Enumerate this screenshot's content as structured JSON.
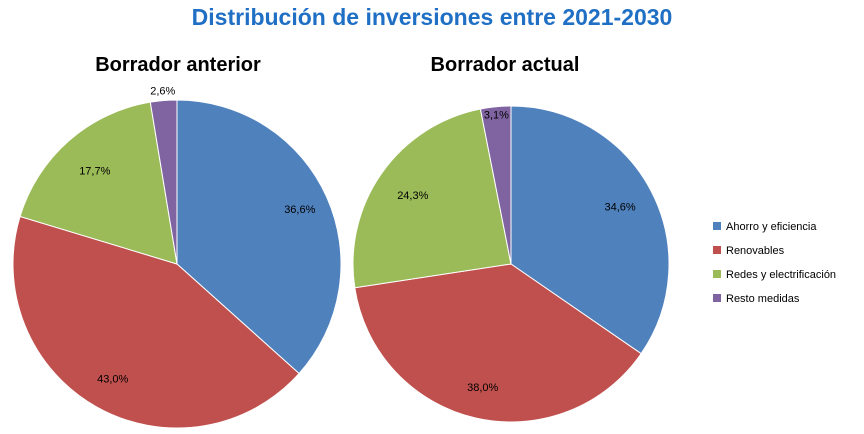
{
  "title": "Distribución de inversiones entre 2021-2030",
  "chart_data": [
    {
      "type": "pie",
      "title": "Borrador anterior",
      "categories": [
        "Ahorro y eficiencia",
        "Renovables",
        "Redes y electrificación",
        "Resto medidas"
      ],
      "values": [
        36.6,
        43.0,
        17.7,
        2.6
      ],
      "labels": [
        "36,6%",
        "43,0%",
        "17,7%",
        "2,6%"
      ],
      "colors": [
        "#4f81bd",
        "#c0504d",
        "#9bbb59",
        "#8064a2"
      ]
    },
    {
      "type": "pie",
      "title": "Borrador actual",
      "categories": [
        "Ahorro y eficiencia",
        "Renovables",
        "Redes y electrificación",
        "Resto medidas"
      ],
      "values": [
        34.6,
        38.0,
        24.3,
        3.1
      ],
      "labels": [
        "34,6%",
        "38,0%",
        "24,3%",
        "3,1%"
      ],
      "colors": [
        "#4f81bd",
        "#c0504d",
        "#9bbb59",
        "#8064a2"
      ]
    }
  ],
  "legend": {
    "position": "right",
    "items": [
      {
        "label": "Ahorro y eficiencia",
        "color": "#4f81bd"
      },
      {
        "label": "Renovables",
        "color": "#c0504d"
      },
      {
        "label": "Redes y electrificación",
        "color": "#9bbb59"
      },
      {
        "label": "Resto medidas",
        "color": "#8064a2"
      }
    ]
  }
}
